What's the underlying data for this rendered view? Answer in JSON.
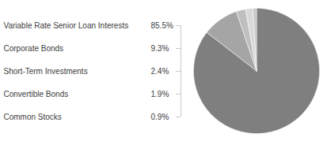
{
  "chart_data": {
    "type": "pie",
    "categories": [
      "Variable Rate Senior Loan Interests",
      "Corporate Bonds",
      "Short-Term Investments",
      "Convertible Bonds",
      "Common Stocks"
    ],
    "values": [
      85.5,
      9.3,
      2.4,
      1.9,
      0.9
    ],
    "value_labels": [
      "85.5%",
      "9.3%",
      "2.4%",
      "1.9%",
      "0.9%"
    ],
    "colors": [
      "#7f7f7f",
      "#a5a5a5",
      "#bfbfbf",
      "#d9d9d9",
      "#c8c8c8"
    ]
  }
}
